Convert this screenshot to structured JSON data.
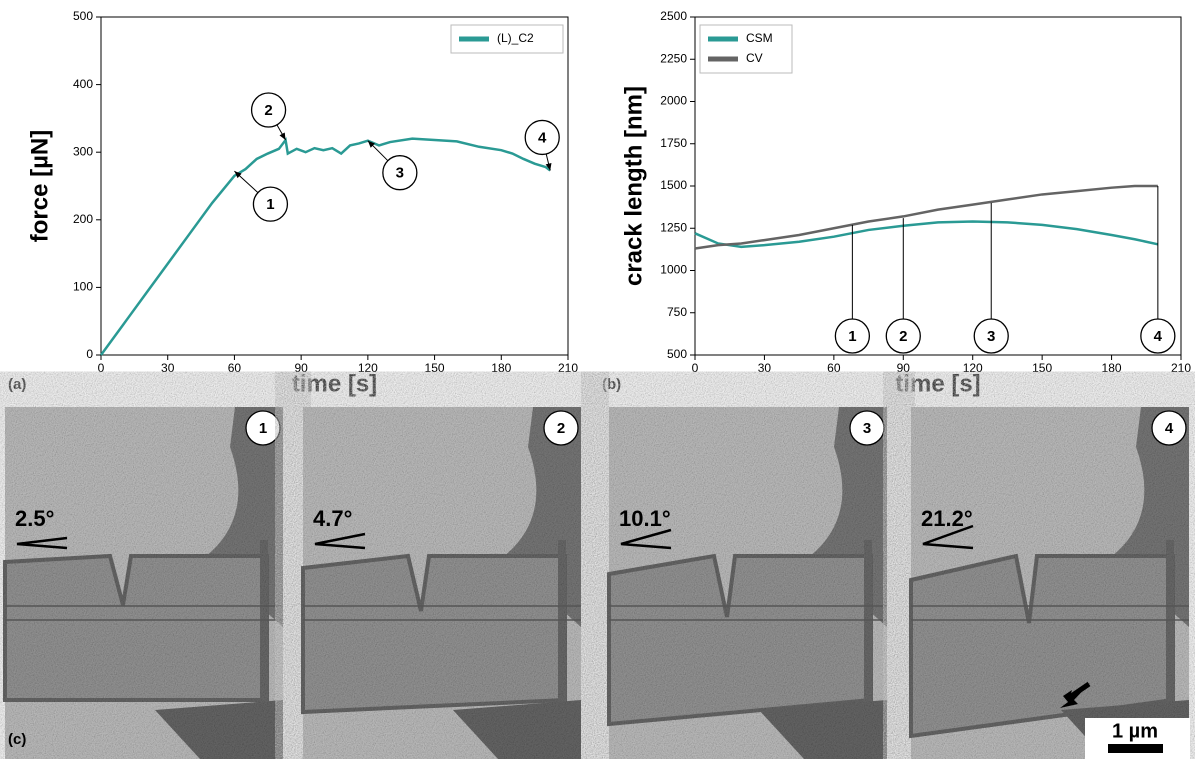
{
  "chart_data": [
    {
      "type": "line",
      "x_label": "time [s]",
      "y_label": "force [µN]",
      "panel_label": "(a)",
      "x": [
        0,
        10,
        20,
        30,
        40,
        50,
        60,
        65,
        70,
        75,
        80,
        83,
        84,
        88,
        92,
        96,
        100,
        104,
        108,
        112,
        116,
        120,
        125,
        130,
        140,
        150,
        160,
        170,
        180,
        185,
        190,
        195,
        200,
        202
      ],
      "series": [
        {
          "name": "(L)_C2",
          "color": "#2a9a94",
          "values": [
            0,
            45,
            90,
            135,
            180,
            225,
            265,
            275,
            290,
            298,
            305,
            318,
            298,
            305,
            300,
            306,
            303,
            306,
            298,
            310,
            313,
            317,
            310,
            315,
            320,
            318,
            316,
            308,
            303,
            298,
            290,
            283,
            278,
            273
          ]
        }
      ],
      "xlim": [
        0,
        210
      ],
      "xticks": [
        0,
        30,
        60,
        90,
        120,
        150,
        180,
        210
      ],
      "ylim": [
        0,
        500
      ],
      "yticks": [
        0,
        100,
        200,
        300,
        400,
        500
      ],
      "legend": "upper right",
      "annotations": [
        {
          "label": "1",
          "x": 60,
          "y": 272
        },
        {
          "label": "2",
          "x": 83,
          "y": 318
        },
        {
          "label": "3",
          "x": 120,
          "y": 317
        },
        {
          "label": "4",
          "x": 202,
          "y": 273
        }
      ]
    },
    {
      "type": "line",
      "x_label": "time [s]",
      "y_label": "crack length [nm]",
      "panel_label": "(b)",
      "x": [
        0,
        10,
        20,
        30,
        45,
        60,
        75,
        90,
        105,
        120,
        135,
        150,
        165,
        180,
        190,
        200
      ],
      "series": [
        {
          "name": "CSM",
          "color": "#2a9a94",
          "values": [
            1220,
            1160,
            1140,
            1150,
            1170,
            1200,
            1240,
            1265,
            1285,
            1290,
            1285,
            1270,
            1245,
            1210,
            1185,
            1155
          ]
        },
        {
          "name": "CV",
          "color": "#646464",
          "values": [
            1130,
            1150,
            1160,
            1180,
            1210,
            1250,
            1290,
            1320,
            1360,
            1390,
            1420,
            1450,
            1470,
            1490,
            1500,
            1500
          ]
        }
      ],
      "xlim": [
        0,
        210
      ],
      "xticks": [
        0,
        30,
        60,
        90,
        120,
        150,
        180,
        210
      ],
      "ylim": [
        500,
        2500
      ],
      "yticks": [
        500,
        750,
        1000,
        1250,
        1500,
        1750,
        2000,
        2250,
        2500
      ],
      "legend": "upper left",
      "annotations": [
        {
          "label": "1",
          "x": 68,
          "y": 1270
        },
        {
          "label": "2",
          "x": 90,
          "y": 1310
        },
        {
          "label": "3",
          "x": 128,
          "y": 1400
        },
        {
          "label": "4",
          "x": 200,
          "y": 1500
        }
      ]
    }
  ],
  "micrographs": {
    "panel_label": "(c)",
    "scale_bar": "1 µm",
    "panels": [
      {
        "label": "1",
        "angle": "2.5°"
      },
      {
        "label": "2",
        "angle": "4.7°"
      },
      {
        "label": "3",
        "angle": "10.1°"
      },
      {
        "label": "4",
        "angle": "21.2°"
      }
    ]
  }
}
